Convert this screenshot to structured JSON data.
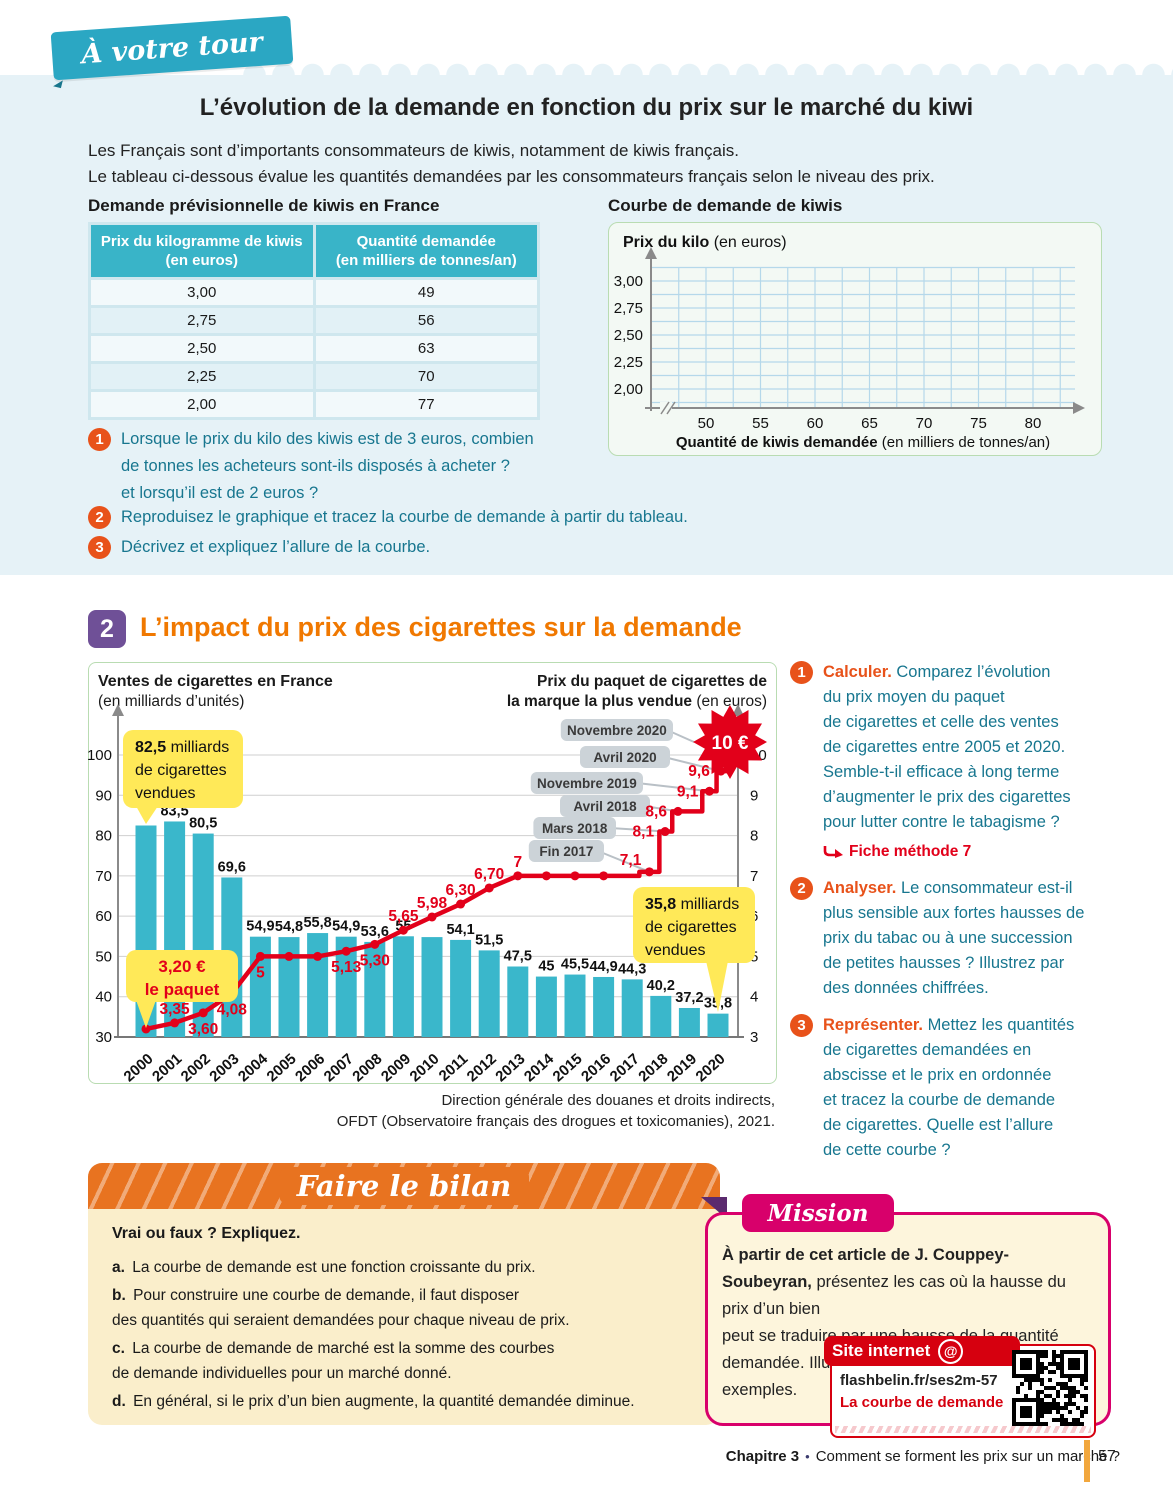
{
  "colors": {
    "accent_teal": "#2ba7c3",
    "table_header": "#39b4c8",
    "bar": "#3ab7cb",
    "line_red": "#e2001a",
    "callout_yellow": "#ffe958",
    "tag_gray": "#ccd3d8",
    "orange_title": "#f07800",
    "badge_purple": "#6f5097",
    "question_orange": "#e8521a",
    "question_teal": "#17768f",
    "bilan_orange": "#e87320",
    "mission_pink": "#d8006b",
    "site_red": "#d6000f",
    "footer_bar": "#f2a73d"
  },
  "page": {
    "ribbon": "À votre tour",
    "title": "L’évolution de la demande en fonction du prix sur le marché du kiwi",
    "intro": "Les Français sont d’importants consommateurs de kiwis, notamment de kiwis français.\nLe tableau ci-dessous évalue les quantités demandées par les consommateurs français selon le niveau des prix.",
    "footer": {
      "chapter": "Chapitre 3",
      "sep": "•",
      "title": "Comment se forment les prix sur un marché ?",
      "page_number": "57"
    }
  },
  "kiwi": {
    "table_title": "Demande prévisionnelle de kiwis en France",
    "table": {
      "headers": [
        "Prix du kilogramme de kiwis\n(en euros)",
        "Quantité demandée\n(en milliers de tonnes/an)"
      ],
      "rows": [
        [
          "3,00",
          "49"
        ],
        [
          "2,75",
          "56"
        ],
        [
          "2,50",
          "63"
        ],
        [
          "2,25",
          "70"
        ],
        [
          "2,00",
          "77"
        ]
      ]
    },
    "chart_title": "Courbe de demande de kiwis",
    "chart": {
      "ylabel": "Prix du kilo",
      "ylabel_unit": "(en euros)",
      "yticks": [
        "3,00",
        "2,75",
        "2,50",
        "2,25",
        "2,00"
      ],
      "xticks": [
        "50",
        "55",
        "60",
        "65",
        "70",
        "75",
        "80"
      ],
      "xlabel": "Quantité de kiwis demandée",
      "xlabel_unit": "(en milliers de tonnes/an)"
    },
    "questions": [
      {
        "num": "1",
        "text": "Lorsque le prix du kilo des kiwis est de 3 euros, combien\nde tonnes les acheteurs sont-ils disposés à acheter ?\net lorsqu’il est de 2 euros ?"
      },
      {
        "num": "2",
        "text": "Reproduisez le graphique et tracez la courbe de demande à partir du tableau."
      },
      {
        "num": "3",
        "text": "Décrivez et expliquez l’allure de la courbe."
      }
    ]
  },
  "section2": {
    "number": "2",
    "title": "L’impact du prix des cigarettes sur la demande",
    "questions": [
      {
        "num": "1",
        "verb": "Calculer.",
        "text": "Comparez l’évolution\ndu prix moyen du paquet\nde cigarettes et celle des ventes\nde cigarettes entre 2005 et 2020.\nSemble-t-il efficace à long terme\nd’augmenter le prix des cigarettes\npour lutter contre le tabagisme ?",
        "link": "Fiche méthode 7"
      },
      {
        "num": "2",
        "verb": "Analyser.",
        "text": "Le consommateur est-il\nplus sensible aux fortes hausses de\nprix du tabac ou à une succession\nde petites hausses ? Illustrez par\ndes données chiffrées."
      },
      {
        "num": "3",
        "verb": "Représenter.",
        "text": "Mettez les quantités\nde cigarettes demandées en\nabscisse et le prix en ordonnée\net tracez la courbe de demande\nde cigarettes. Quelle est l’allure\nde cette courbe ?"
      }
    ]
  },
  "chart_data": {
    "type": "bar",
    "title_left": "Ventes de cigarettes en France",
    "title_left_unit": "(en milliards d’unités)",
    "title_right_1": "Prix du paquet de cigarettes de",
    "title_right_2": "la marque la plus vendue",
    "title_right_unit": "(en euros)",
    "categories": [
      2000,
      2001,
      2002,
      2003,
      2004,
      2005,
      2006,
      2007,
      2008,
      2009,
      2010,
      2011,
      2012,
      2013,
      2014,
      2015,
      2016,
      2017,
      2018,
      2019,
      2020
    ],
    "series": [
      {
        "name": "Ventes de cigarettes",
        "type": "bar",
        "axis": "left",
        "values": [
          82.5,
          83.5,
          80.5,
          69.6,
          54.9,
          54.8,
          55.8,
          54.9,
          53.6,
          55,
          54.8,
          54.1,
          51.5,
          47.5,
          45,
          45.5,
          44.9,
          44.3,
          40.2,
          37.2,
          35.8
        ],
        "bar_labels": [
          "",
          "83,5",
          "80,5",
          "69,6",
          "54,9",
          "54,8",
          "55,8",
          "54,9",
          "53,6",
          "55",
          "",
          "54,1",
          "51,5",
          "47,5",
          "45",
          "45,5",
          "44,9",
          "44,3",
          "40,2",
          "37,2",
          "35,8"
        ]
      },
      {
        "name": "Prix du paquet de cigarettes de la marque la plus vendue",
        "type": "line",
        "axis": "right",
        "path": [
          [
            2000,
            3.2
          ],
          [
            2001,
            3.35
          ],
          [
            2002,
            3.6
          ],
          [
            2003,
            4.08
          ],
          [
            2004,
            5
          ],
          [
            2005,
            5
          ],
          [
            2006,
            5
          ],
          [
            2007,
            5.13
          ],
          [
            2008,
            5.3
          ],
          [
            2009,
            5.65
          ],
          [
            2010,
            5.98
          ],
          [
            2011,
            6.3
          ],
          [
            2012,
            6.7
          ],
          [
            2013,
            7
          ],
          [
            2016,
            7
          ],
          [
            2017.25,
            7
          ],
          [
            2017.25,
            7.1
          ],
          [
            2017.95,
            7.1
          ],
          [
            2017.95,
            8.1
          ],
          [
            2018.4,
            8.1
          ],
          [
            2018.4,
            8.6
          ],
          [
            2019.45,
            8.6
          ],
          [
            2019.45,
            9.1
          ],
          [
            2019.95,
            9.1
          ],
          [
            2019.95,
            9.6
          ],
          [
            2020.35,
            9.6
          ],
          [
            2020.35,
            10.45
          ]
        ],
        "points": [
          {
            "x": 2000,
            "v": 3.2,
            "label": "",
            "pos": ""
          },
          {
            "x": 2001,
            "v": 3.35,
            "label": "3,35",
            "pos": "above"
          },
          {
            "x": 2002,
            "v": 3.6,
            "label": "3,60",
            "pos": "below"
          },
          {
            "x": 2003,
            "v": 4.08,
            "label": "4,08",
            "pos": "below"
          },
          {
            "x": 2004,
            "v": 5,
            "label": "5",
            "pos": "below"
          },
          {
            "x": 2005,
            "v": 5,
            "label": "",
            "pos": ""
          },
          {
            "x": 2006,
            "v": 5,
            "label": "",
            "pos": ""
          },
          {
            "x": 2007,
            "v": 5.13,
            "label": "5,13",
            "pos": "below"
          },
          {
            "x": 2008,
            "v": 5.3,
            "label": "5,30",
            "pos": "below"
          },
          {
            "x": 2009,
            "v": 5.65,
            "label": "5,65",
            "pos": "above"
          },
          {
            "x": 2010,
            "v": 5.98,
            "label": "5,98",
            "pos": "above"
          },
          {
            "x": 2011,
            "v": 6.3,
            "label": "6,30",
            "pos": "above"
          },
          {
            "x": 2012,
            "v": 6.7,
            "label": "6,70",
            "pos": "above"
          },
          {
            "x": 2013,
            "v": 7,
            "label": "7",
            "pos": "above"
          },
          {
            "x": 2014,
            "v": 7,
            "label": "",
            "pos": ""
          },
          {
            "x": 2015,
            "v": 7,
            "label": "",
            "pos": ""
          },
          {
            "x": 2016,
            "v": 7,
            "label": "",
            "pos": ""
          },
          {
            "x": 2017.6,
            "v": 7.1,
            "label": "7,1",
            "pos": "above-left"
          },
          {
            "x": 2018.15,
            "v": 8.1,
            "label": "8,1",
            "pos": "left"
          },
          {
            "x": 2018.6,
            "v": 8.6,
            "label": "8,6",
            "pos": "left"
          },
          {
            "x": 2019.7,
            "v": 9.1,
            "label": "9,1",
            "pos": "left"
          },
          {
            "x": 2020.1,
            "v": 9.6,
            "label": "9,6",
            "pos": "left"
          }
        ]
      }
    ],
    "left_axis": {
      "min": 30,
      "max": 100,
      "ticks": [
        30,
        40,
        50,
        60,
        70,
        80,
        90,
        100
      ]
    },
    "right_axis": {
      "min": 3,
      "max": 10,
      "ticks": [
        3,
        4,
        5,
        6,
        7,
        8,
        9,
        10
      ]
    },
    "callouts": [
      {
        "lines": [
          "82,5 milliards",
          "de cigarettes",
          "vendues"
        ],
        "bold": "82,5",
        "color": "dark"
      },
      {
        "lines": [
          "3,20 €",
          "le paquet"
        ],
        "bold": "",
        "color": "red"
      },
      {
        "lines": [
          "35,8 milliards",
          "de cigarettes",
          "vendues"
        ],
        "bold": "35,8",
        "color": "dark"
      }
    ],
    "date_tags": [
      "Novembre 2020",
      "Avril 2020",
      "Novembre 2019",
      "Avril 2018",
      "Mars 2018",
      "Fin 2017"
    ],
    "starburst": "10 €",
    "source": "Direction générale des douanes et droits indirects,\nOFDT (Observatoire français des drogues et toxicomanies), 2021."
  },
  "bilan": {
    "banner": "Faire le bilan",
    "intro": "Vrai ou faux ? Expliquez.",
    "items": [
      {
        "letter": "a.",
        "text": "La courbe de demande est une fonction croissante du prix."
      },
      {
        "letter": "b.",
        "text": "Pour construire une courbe de demande, il faut disposer\ndes quantités qui seraient demandées pour chaque niveau de prix."
      },
      {
        "letter": "c.",
        "text": "La courbe de demande de marché est la somme des courbes\nde demande individuelles pour un marché donné."
      },
      {
        "letter": "d.",
        "text": "En général, si le prix d’un bien augmente, la quantité demandée diminue."
      }
    ]
  },
  "mission": {
    "tab": "Mission",
    "bold_line": "À partir de cet article de J. Couppey-Soubeyran,",
    "text": "présentez les cas où la hausse du prix d’un bien\npeut se traduire par une hausse de la quantité\ndemandée. Illustrez chaque cas par des exemples.",
    "site": {
      "banner": "Site internet",
      "at": "@",
      "url": "flashbelin.fr/ses2m-57",
      "link_title": "La courbe de demande"
    }
  }
}
